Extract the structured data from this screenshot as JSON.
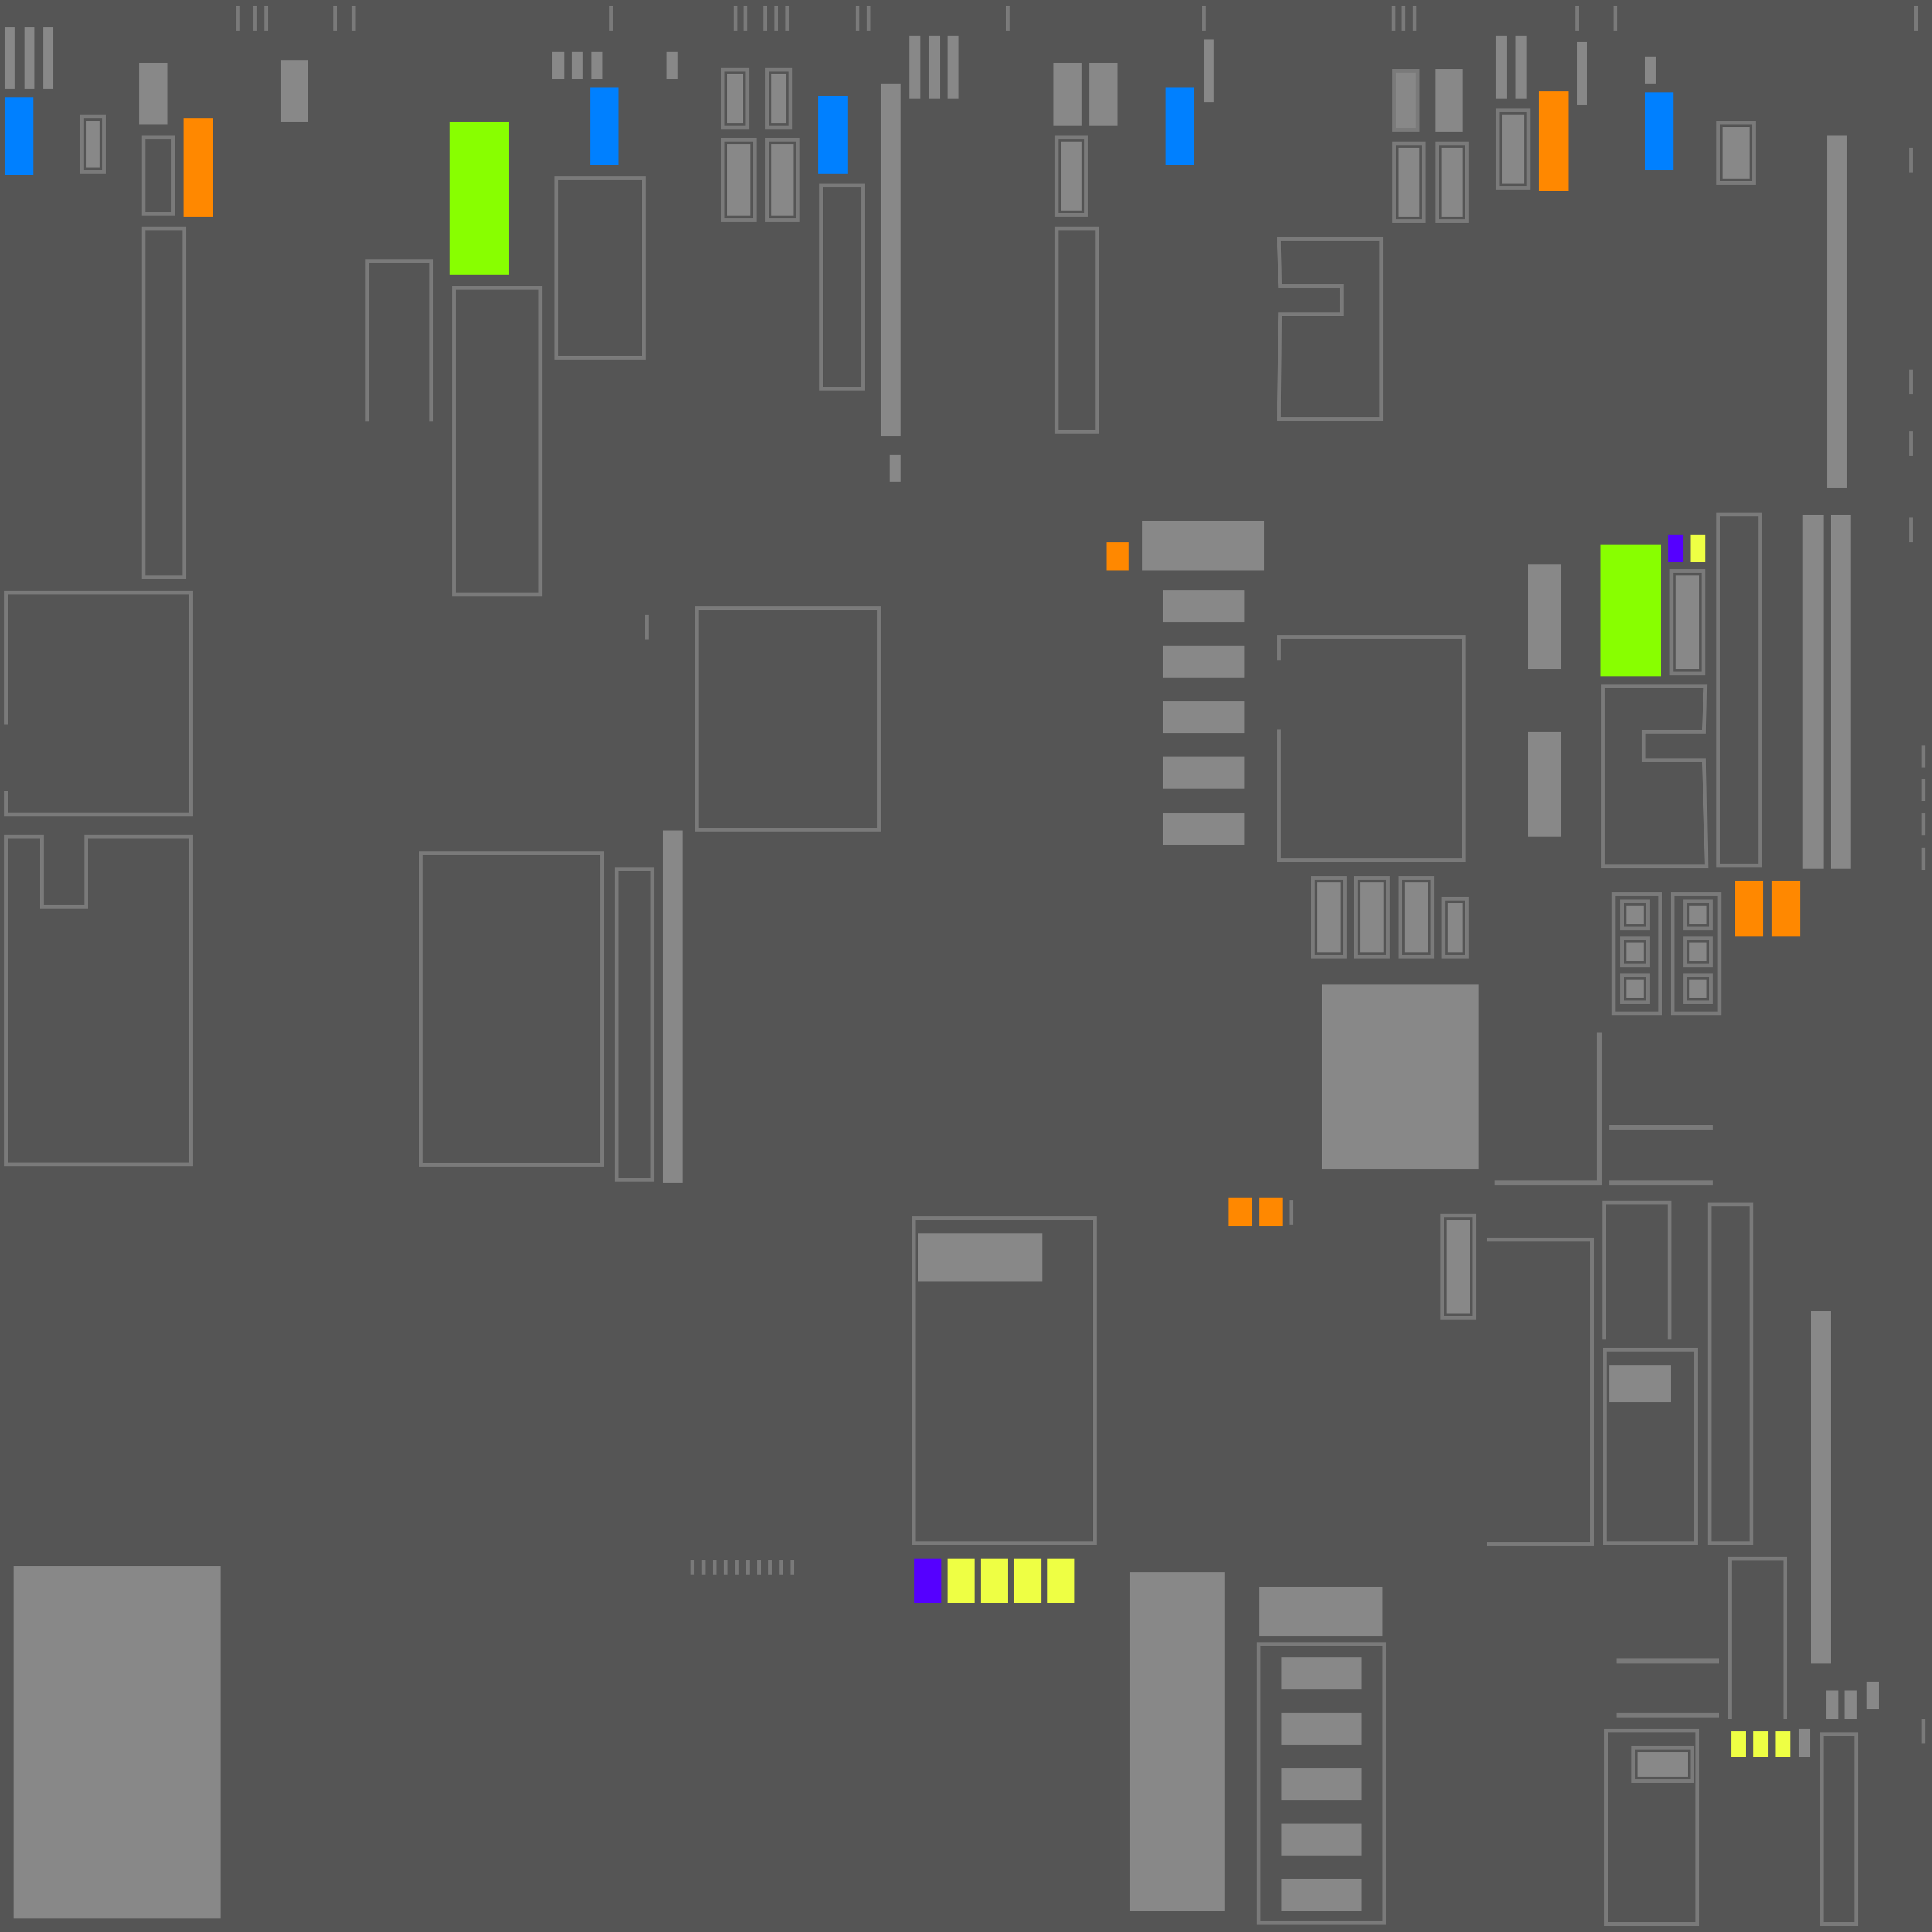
{
  "colors": {
    "background": "#555555",
    "panel": "#888888",
    "outline": "#7a7a7a",
    "blue": "#0080ff",
    "orange": "#ff8800",
    "green": "#88ff00",
    "yellow": "#eeff44",
    "purple": "#5500ff"
  }
}
